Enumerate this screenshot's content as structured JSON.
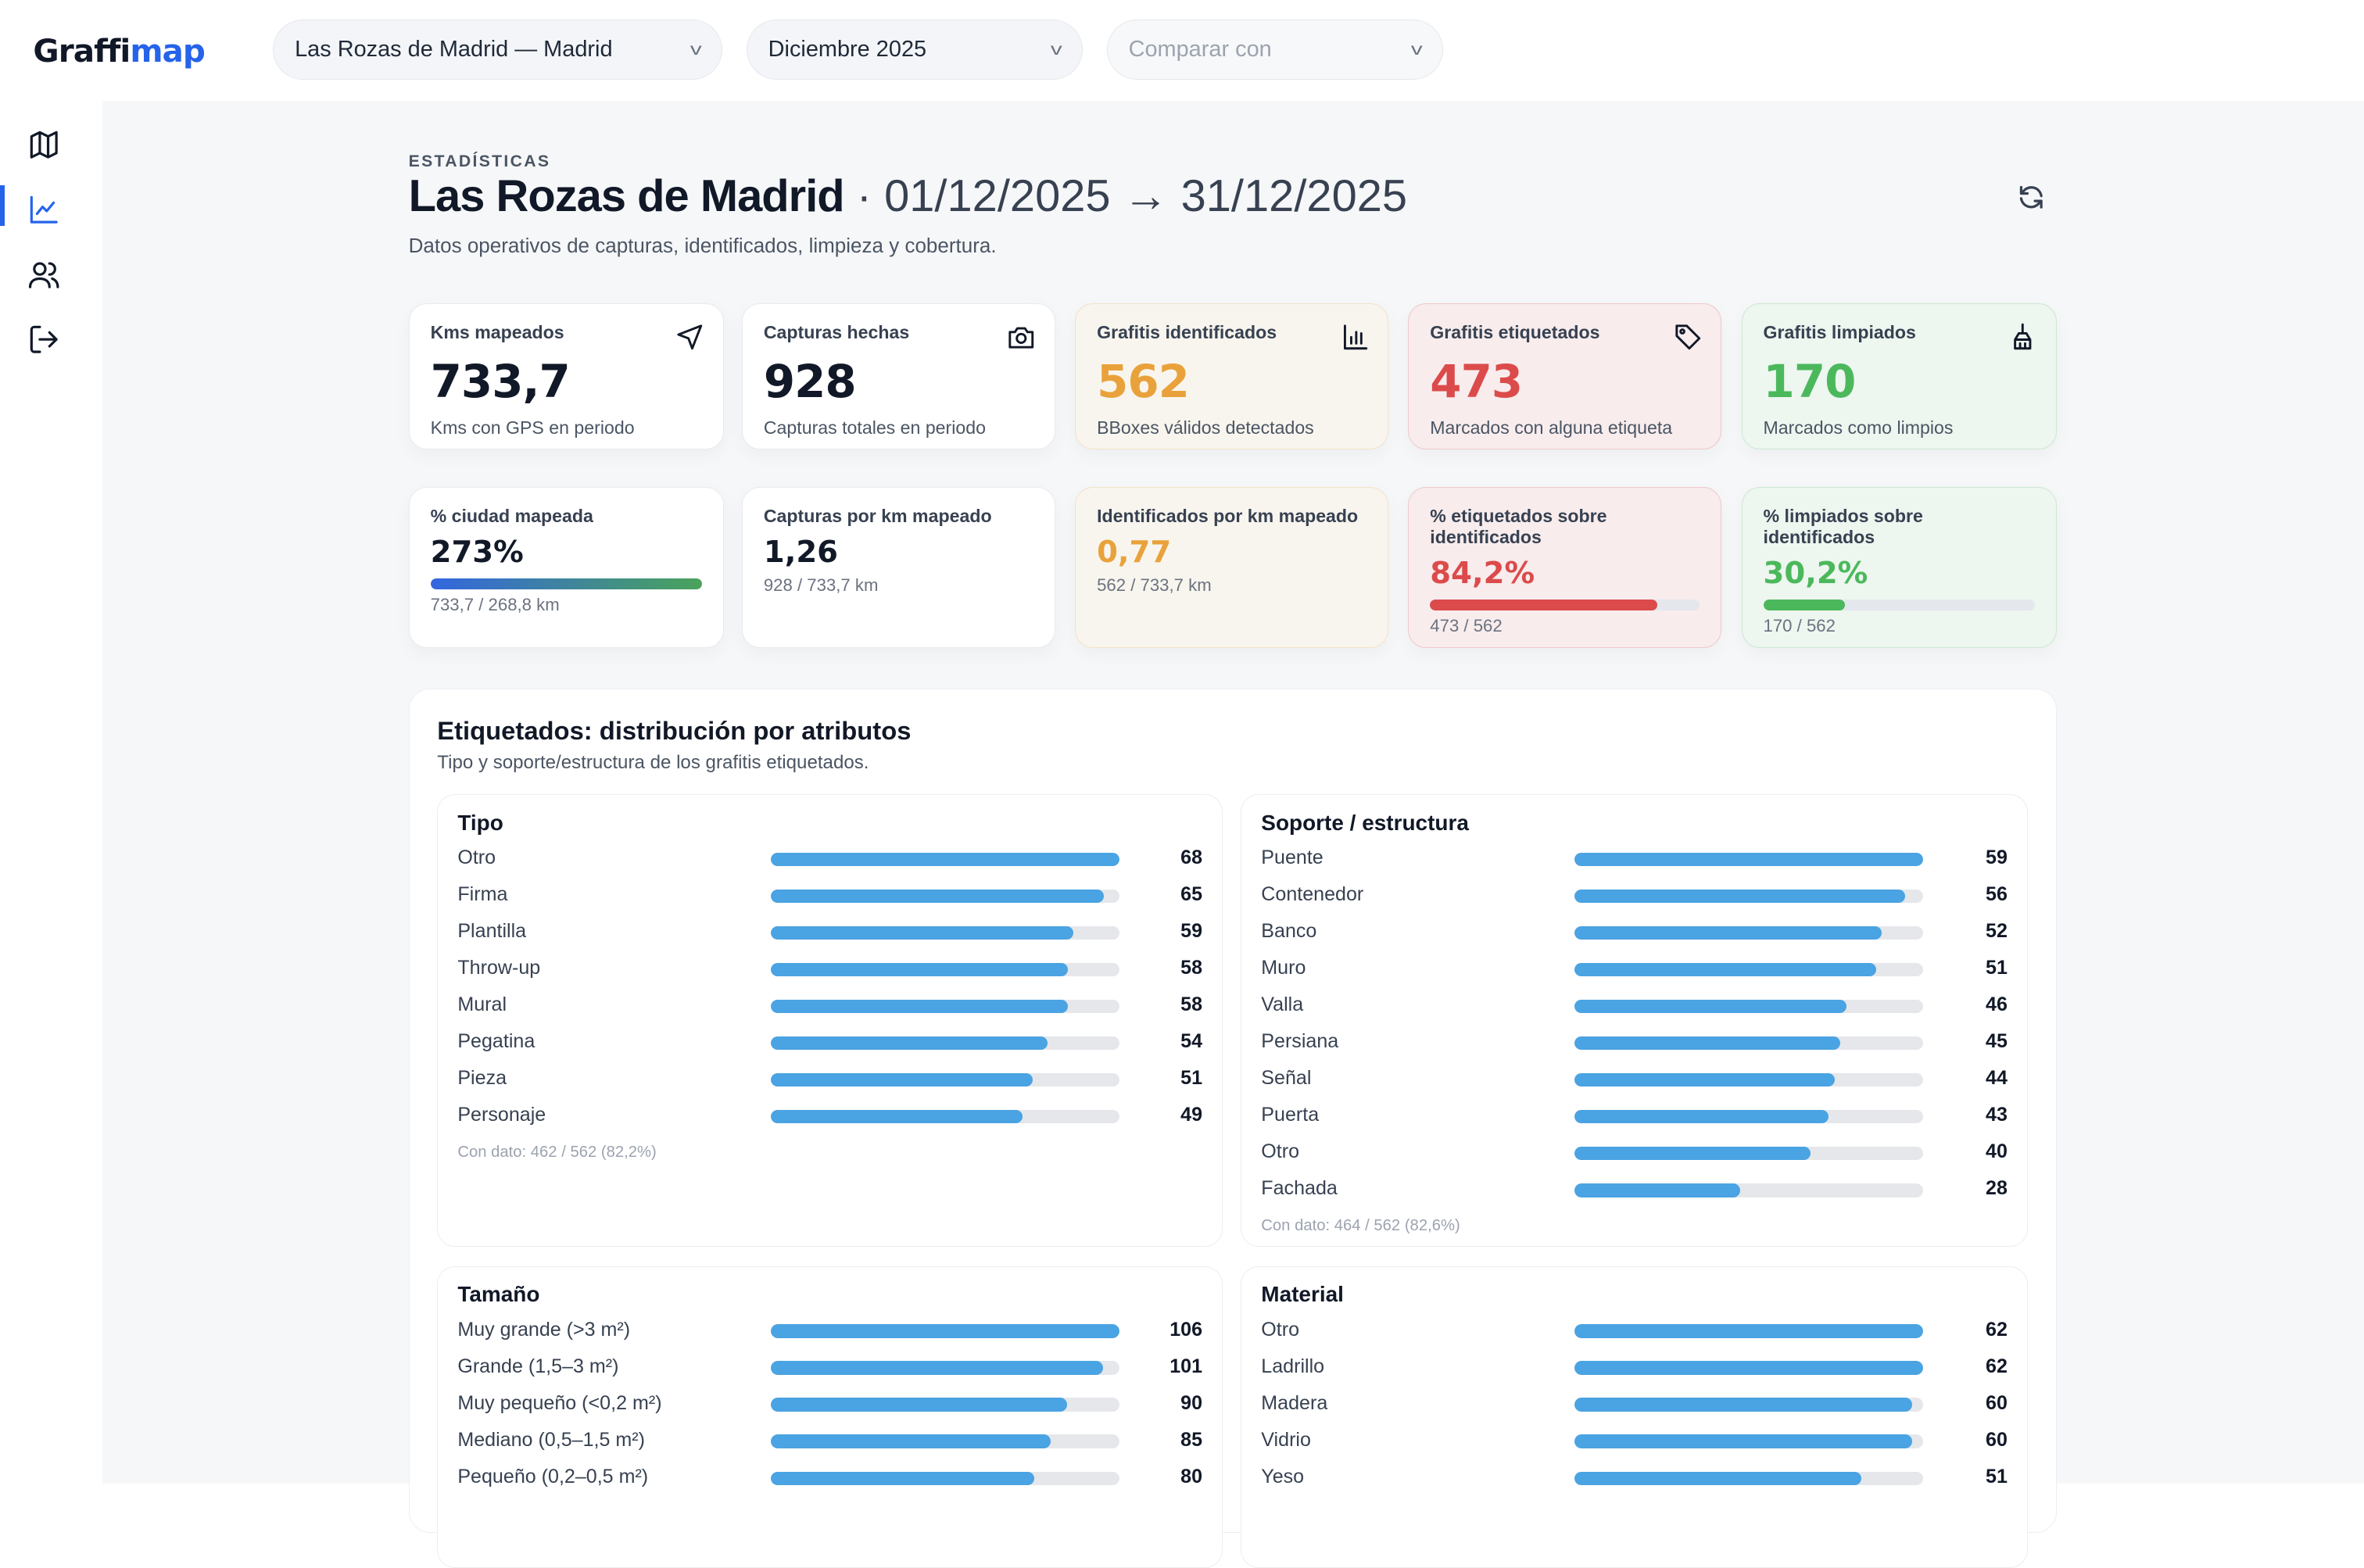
{
  "brand": {
    "part1": "Graffi",
    "part2": "map"
  },
  "filters": {
    "city": "Las Rozas de Madrid — Madrid",
    "period": "Diciembre 2025",
    "compare_placeholder": "Comparar con"
  },
  "nav": [
    {
      "id": "map",
      "icon": "map-icon"
    },
    {
      "id": "stats",
      "icon": "chart-line-icon",
      "active": true
    },
    {
      "id": "users",
      "icon": "users-icon"
    },
    {
      "id": "logout",
      "icon": "logout-icon"
    }
  ],
  "header": {
    "eyebrow": "ESTADÍSTICAS",
    "city": "Las Rozas de Madrid",
    "range": " · 01/12/2025 → 31/12/2025",
    "subtitle": "Datos operativos de capturas, identificados, limpieza y cobertura."
  },
  "kpis": [
    {
      "label": "Kms mapeados",
      "value": "733,7",
      "sub": "Kms con GPS en periodo",
      "icon": "navigation-icon"
    },
    {
      "label": "Capturas hechas",
      "value": "928",
      "sub": "Capturas totales en periodo",
      "icon": "camera-icon"
    },
    {
      "label": "Grafitis identificados",
      "value": "562",
      "sub": "BBoxes válidos detectados",
      "icon": "bar-chart-icon"
    },
    {
      "label": "Grafitis etiquetados",
      "value": "473",
      "sub": "Marcados con alguna etiqueta",
      "icon": "tag-icon"
    },
    {
      "label": "Grafitis limpiados",
      "value": "170",
      "sub": "Marcados como limpios",
      "icon": "broom-icon"
    }
  ],
  "ratios": [
    {
      "label": "% ciudad mapeada",
      "value": "273%",
      "detail": "733,7 / 268,8 km",
      "progress": 1.0
    },
    {
      "label": "Capturas por km mapeado",
      "value": "1,26",
      "detail": "928 / 733,7 km"
    },
    {
      "label": "Identificados por km mapeado",
      "value": "0,77",
      "detail": "562 / 733,7 km"
    },
    {
      "label": "% etiquetados sobre identificados",
      "value": "84,2%",
      "detail": "473 / 562",
      "progress": 0.842
    },
    {
      "label": "% limpiados sobre identificados",
      "value": "30,2%",
      "detail": "170 / 562",
      "progress": 0.302
    }
  ],
  "colors": {
    "accent": "#2563eb",
    "orange": "#e9a23b",
    "red": "#dc4b4b",
    "green": "#4cb85c",
    "bar": "#4aa3e2"
  },
  "attributes": {
    "title": "Etiquetados: distribución por atributos",
    "subtitle": "Tipo y soporte/estructura de los grafitis etiquetados.",
    "groups": [
      {
        "title": "Tipo",
        "note": "Con dato: 462 / 562 (82,2%)",
        "items": [
          [
            "Otro",
            68
          ],
          [
            "Firma",
            65
          ],
          [
            "Plantilla",
            59
          ],
          [
            "Throw-up",
            58
          ],
          [
            "Mural",
            58
          ],
          [
            "Pegatina",
            54
          ],
          [
            "Pieza",
            51
          ],
          [
            "Personaje",
            49
          ]
        ]
      },
      {
        "title": "Soporte / estructura",
        "note": "Con dato: 464 / 562 (82,6%)",
        "items": [
          [
            "Puente",
            59
          ],
          [
            "Contenedor",
            56
          ],
          [
            "Banco",
            52
          ],
          [
            "Muro",
            51
          ],
          [
            "Valla",
            46
          ],
          [
            "Persiana",
            45
          ],
          [
            "Señal",
            44
          ],
          [
            "Puerta",
            43
          ],
          [
            "Otro",
            40
          ],
          [
            "Fachada",
            28
          ]
        ]
      },
      {
        "title": "Tamaño",
        "items": [
          [
            "Muy grande (>3 m²)",
            106
          ],
          [
            "Grande (1,5–3 m²)",
            101
          ],
          [
            "Muy pequeño (<0,2 m²)",
            90
          ],
          [
            "Mediano (0,5–1,5 m²)",
            85
          ],
          [
            "Pequeño (0,2–0,5 m²)",
            80
          ]
        ]
      },
      {
        "title": "Material",
        "items": [
          [
            "Otro",
            62
          ],
          [
            "Ladrillo",
            62
          ],
          [
            "Madera",
            60
          ],
          [
            "Vidrio",
            60
          ],
          [
            "Yeso",
            51
          ]
        ]
      }
    ]
  }
}
